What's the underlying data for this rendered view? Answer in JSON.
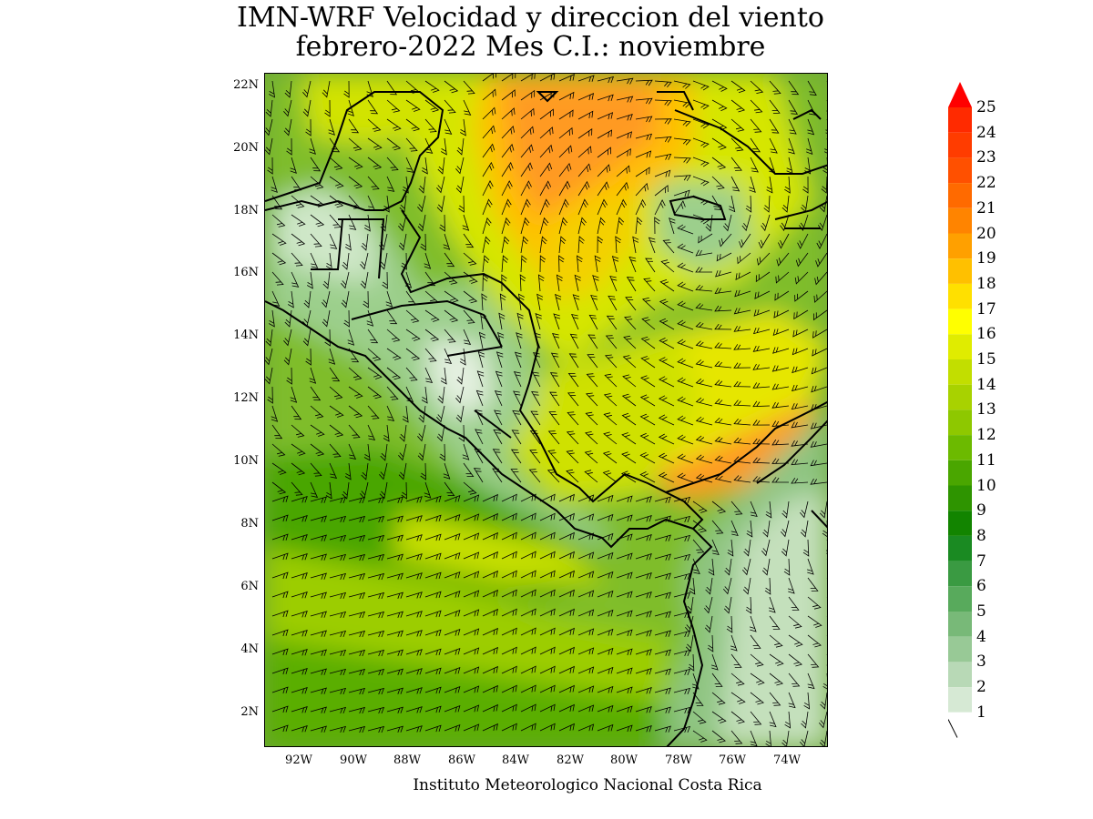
{
  "title": {
    "line1": "IMN-WRF Velocidad y direccion del viento",
    "line2": "febrero-2022 Mes C.I.: noviembre"
  },
  "credit": "Instituto Meteorologico Nacional Costa Rica",
  "map": {
    "lat_range": [
      1,
      22.4
    ],
    "lon_range": [
      -93.3,
      -72.6
    ],
    "lat_ticks": [
      "22N",
      "20N",
      "18N",
      "16N",
      "14N",
      "12N",
      "10N",
      "8N",
      "6N",
      "4N",
      "2N"
    ],
    "lon_ticks": [
      "92W",
      "90W",
      "88W",
      "86W",
      "84W",
      "82W",
      "80W",
      "78W",
      "76W",
      "74W"
    ]
  },
  "colorbar": {
    "levels": [
      "25",
      "24",
      "23",
      "22",
      "21",
      "20",
      "19",
      "18",
      "17",
      "16",
      "15",
      "14",
      "13",
      "12",
      "11",
      "10",
      "9",
      "8",
      "7",
      "6",
      "5",
      "4",
      "3",
      "2",
      "1"
    ],
    "colors": [
      "#ff2a00",
      "#ff3c00",
      "#ff5000",
      "#ff6a00",
      "#ff8400",
      "#ffa000",
      "#ffc000",
      "#ffe000",
      "#ffff00",
      "#e0ec00",
      "#c2de00",
      "#a8d200",
      "#8ec800",
      "#6cba00",
      "#4aa600",
      "#2e9400",
      "#128400",
      "#1a8a22",
      "#3a9a42",
      "#58aa5c",
      "#78b978",
      "#98c996",
      "#b8d9b6",
      "#d6e9d4",
      "#ffffff"
    ],
    "triangle_color": "#ff0000"
  }
}
